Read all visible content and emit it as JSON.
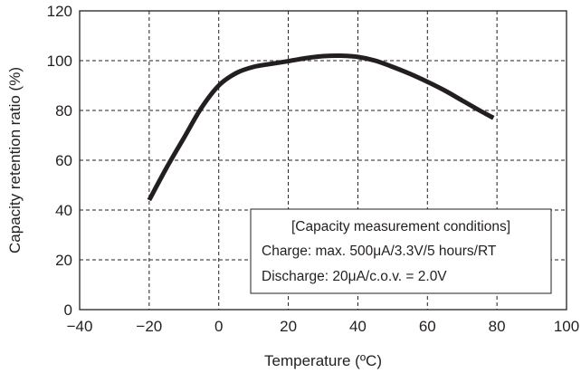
{
  "chart_data": {
    "type": "line",
    "title": "",
    "xlabel": "Temperature (ºC)",
    "ylabel": "Capacity retention ratio (%)",
    "xlim": [
      -40,
      100
    ],
    "ylim": [
      0,
      120
    ],
    "x_ticks": [
      -40,
      -20,
      0,
      20,
      40,
      60,
      80,
      100
    ],
    "y_ticks": [
      0,
      20,
      40,
      60,
      80,
      100,
      120
    ],
    "x_tick_labels": [
      "−40",
      "−20",
      "0",
      "20",
      "40",
      "60",
      "80",
      "100"
    ],
    "y_tick_labels": [
      "0",
      "20",
      "40",
      "60",
      "80",
      "100",
      "120"
    ],
    "grid": "dashed",
    "series": [
      {
        "x": [
          -20,
          -15,
          -10,
          -5,
          0,
          5,
          10,
          15,
          20,
          25,
          30,
          35,
          40,
          45,
          50,
          55,
          60,
          65,
          70,
          75,
          79
        ],
        "y": [
          44,
          57,
          69,
          81,
          90,
          95,
          97.5,
          98.7,
          99.8,
          101,
          101.8,
          102,
          101.5,
          100,
          97.5,
          94.7,
          91.5,
          88,
          84,
          80,
          77
        ],
        "color": "#231f20"
      }
    ],
    "annotation": {
      "lines": [
        "[Capacity measurement conditions]",
        "Charge: max. 500μA/3.3V/5 hours/RT",
        "Discharge: 20μA/c.o.v. = 2.0V"
      ],
      "placement": "bottom-right"
    }
  }
}
